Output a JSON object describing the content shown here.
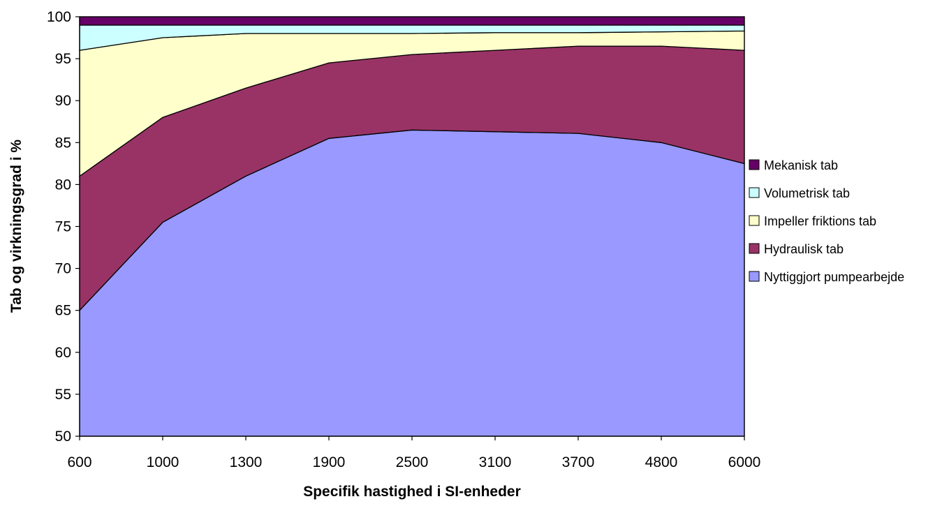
{
  "chart_data": {
    "type": "area",
    "stacked": true,
    "xlabel": "Specifik hastighed i SI-enheder",
    "ylabel": "Tab og virkningsgrad i %",
    "ylim": [
      50,
      100
    ],
    "yticks": [
      50,
      55,
      60,
      65,
      70,
      75,
      80,
      85,
      90,
      95,
      100
    ],
    "categories": [
      "600",
      "1000",
      "1300",
      "1900",
      "2500",
      "3100",
      "3700",
      "4800",
      "6000"
    ],
    "grid": false,
    "legend_position": "right",
    "series": [
      {
        "name": "Nyttiggjort pumpearbejde",
        "color": "#9999ff",
        "cumulative": [
          65,
          75.5,
          81,
          85.5,
          86.5,
          86.3,
          86.1,
          85,
          82.5
        ]
      },
      {
        "name": "Hydraulisk tab",
        "color": "#993366",
        "cumulative": [
          81,
          88,
          91.5,
          94.5,
          95.5,
          96,
          96.5,
          96.5,
          96
        ]
      },
      {
        "name": "Impeller friktions tab",
        "color": "#ffffcc",
        "cumulative": [
          96,
          97.5,
          98,
          98,
          98,
          98.1,
          98.1,
          98.2,
          98.3
        ]
      },
      {
        "name": "Volumetrisk tab",
        "color": "#ccffff",
        "cumulative": [
          99,
          99,
          99,
          99,
          99,
          99,
          99,
          99,
          99
        ]
      },
      {
        "name": "Mekanisk tab",
        "color": "#660066",
        "cumulative": [
          100,
          100,
          100,
          100,
          100,
          100,
          100,
          100,
          100
        ]
      }
    ]
  }
}
